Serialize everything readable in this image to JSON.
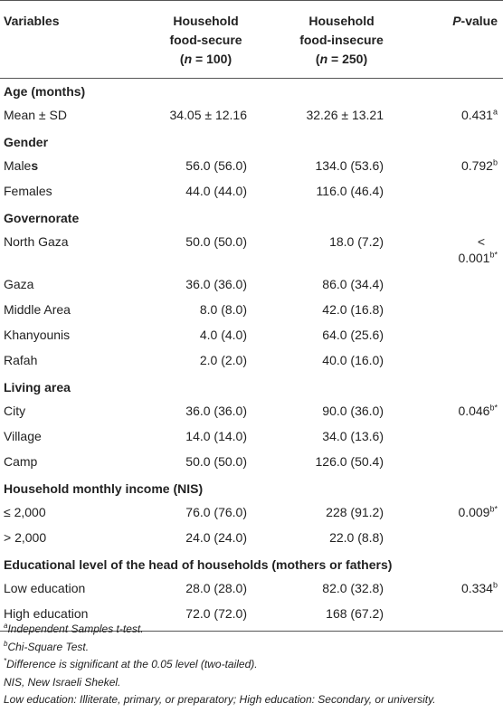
{
  "header": {
    "col1": "Variables",
    "col2_line1": "Household",
    "col2_line2": "food-secure",
    "col2_n_label": "n",
    "col2_n_value": " = 100)",
    "col3_line1": "Household",
    "col3_line2": "food-insecure",
    "col3_n_label": "n",
    "col3_n_value": " = 250)",
    "col4_p": "P",
    "col4_rest": "-value"
  },
  "rows": [
    {
      "type": "section",
      "label": "Age (months)"
    },
    {
      "type": "data",
      "label": "Mean ± SD",
      "secure": "34.05 ± 12.16",
      "insecure": "32.26 ± 13.21",
      "p": "0.431",
      "p_sup": "a"
    },
    {
      "type": "section",
      "label": "Gender"
    },
    {
      "type": "data",
      "label_main": "Male",
      "label_bold": "s",
      "secure": "56.0 (56.0)",
      "insecure": "134.0 (53.6)",
      "p": "0.792",
      "p_sup": "b"
    },
    {
      "type": "data",
      "label": "Females",
      "secure": "44.0 (44.0)",
      "insecure": "116.0 (46.4)",
      "p": "",
      "p_sup": ""
    },
    {
      "type": "section",
      "label": "Governorate"
    },
    {
      "type": "data",
      "label": "North Gaza",
      "secure": "50.0 (50.0)",
      "insecure": "18.0 (7.2)",
      "p_line1": "<",
      "p": "0.001",
      "p_sup": "b*"
    },
    {
      "type": "data",
      "label": "Gaza",
      "secure": "36.0 (36.0)",
      "insecure": "86.0 (34.4)",
      "p": "",
      "p_sup": ""
    },
    {
      "type": "data",
      "label": "Middle Area",
      "secure": "8.0 (8.0)",
      "insecure": "42.0 (16.8)",
      "p": "",
      "p_sup": ""
    },
    {
      "type": "data",
      "label": "Khanyounis",
      "secure": "4.0 (4.0)",
      "insecure": "64.0 (25.6)",
      "p": "",
      "p_sup": ""
    },
    {
      "type": "data",
      "label": "Rafah",
      "secure": "2.0 (2.0)",
      "insecure": "40.0 (16.0)",
      "p": "",
      "p_sup": ""
    },
    {
      "type": "section",
      "label": "Living area"
    },
    {
      "type": "data",
      "label": "City",
      "secure": "36.0 (36.0)",
      "insecure": "90.0 (36.0)",
      "p": "0.046",
      "p_sup": "b*"
    },
    {
      "type": "data",
      "label": "Village",
      "secure": "14.0 (14.0)",
      "insecure": "34.0 (13.6)",
      "p": "",
      "p_sup": ""
    },
    {
      "type": "data",
      "label": "Camp",
      "secure": "50.0 (50.0)",
      "insecure": "126.0 (50.4)",
      "p": "",
      "p_sup": ""
    },
    {
      "type": "section",
      "label": "Household monthly income (NIS)"
    },
    {
      "type": "data",
      "label": "≤ 2,000",
      "secure": "76.0 (76.0)",
      "insecure": "228 (91.2)",
      "p": "0.009",
      "p_sup": "b*"
    },
    {
      "type": "data",
      "label": "> 2,000",
      "secure": "24.0 (24.0)",
      "insecure": "22.0 (8.8)",
      "p": "",
      "p_sup": ""
    },
    {
      "type": "section",
      "label": "Educational level of the head of households (mothers or fathers)"
    },
    {
      "type": "data",
      "label": "Low education",
      "secure": "28.0 (28.0)",
      "insecure": "82.0 (32.8)",
      "p": "0.334",
      "p_sup": "b"
    },
    {
      "type": "data",
      "label": "High education",
      "secure": "72.0 (72.0)",
      "insecure": "168 (67.2)",
      "p": "",
      "p_sup": ""
    }
  ],
  "notes": {
    "a_sup": "a",
    "a_text": "Independent Samples t-test.",
    "b_sup": "b",
    "b_text": "Chi-Square Test.",
    "star_sup": "*",
    "star_text": "Difference is significant at the 0.05 level (two-tailed).",
    "nis": "NIS, New Israeli Shekel.",
    "edu": "Low education: Illiterate, primary, or preparatory; High education: Secondary, or university."
  }
}
